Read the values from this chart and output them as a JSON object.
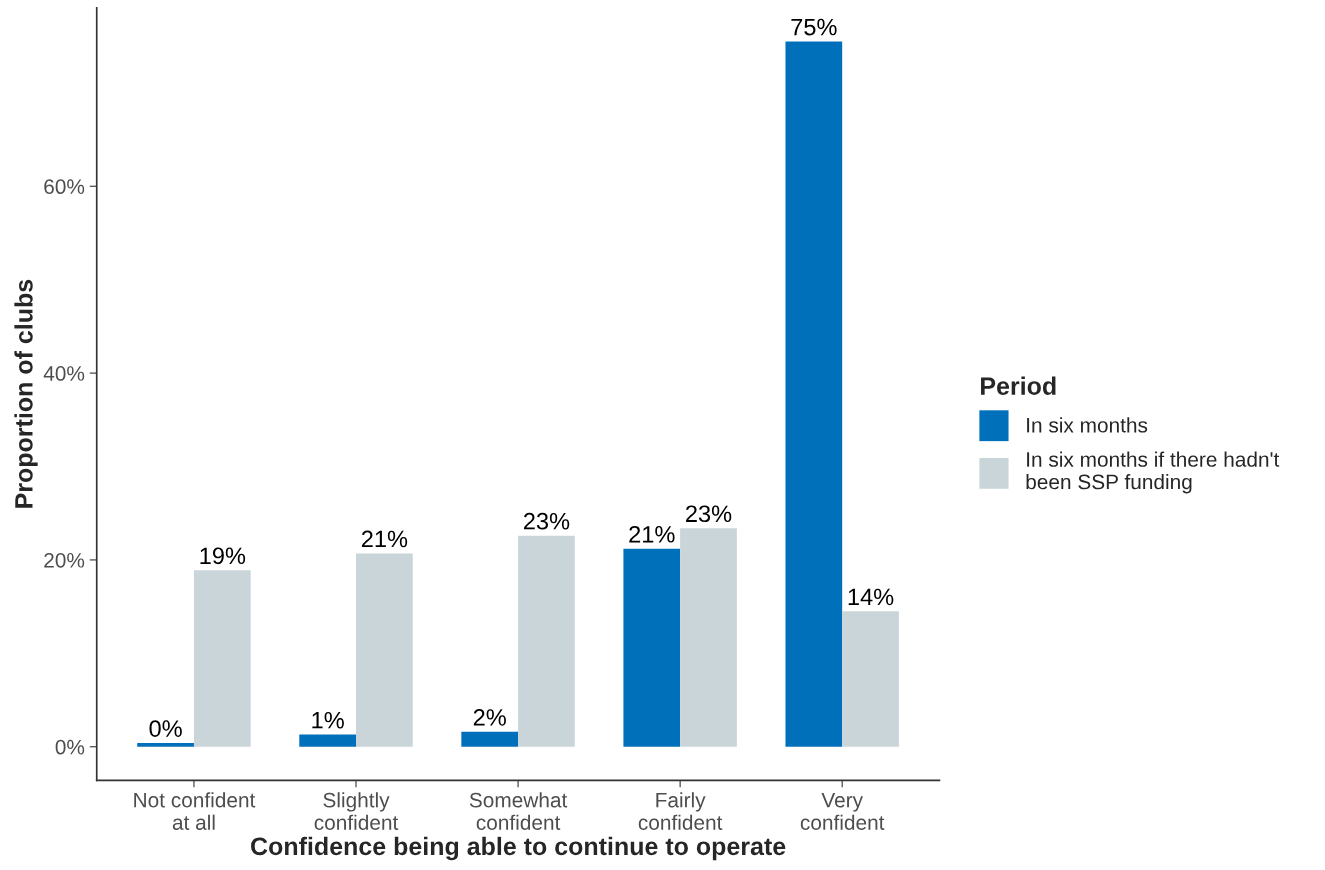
{
  "chart_data": {
    "type": "bar",
    "xlabel": "Confidence being able to continue to operate",
    "ylabel": "Proportion of clubs",
    "legend_title": "Period",
    "categories": [
      "Not confident\nat all",
      "Slightly\nconfident",
      "Somewhat\nconfident",
      "Fairly\nconfident",
      "Very\nconfident"
    ],
    "series": [
      {
        "name": "In six months",
        "color": "#0070bb",
        "values": [
          0.4,
          1.3,
          1.6,
          21.2,
          75.5
        ],
        "value_labels": [
          "0%",
          "1%",
          "2%",
          "21%",
          "75%"
        ]
      },
      {
        "name": "In six months if there hadn't\nbeen SSP funding",
        "color": "#cad5da",
        "values": [
          18.9,
          20.7,
          22.6,
          23.4,
          14.5
        ],
        "value_labels": [
          "19%",
          "21%",
          "23%",
          "23%",
          "14%"
        ]
      }
    ],
    "ylim": [
      -3.6,
      79.1
    ],
    "yticks": [
      {
        "value": 0,
        "label": "0%"
      },
      {
        "value": 20,
        "label": "20%"
      },
      {
        "value": 40,
        "label": "40%"
      },
      {
        "value": 60,
        "label": "60%"
      }
    ],
    "grid": false,
    "legend": "right"
  }
}
